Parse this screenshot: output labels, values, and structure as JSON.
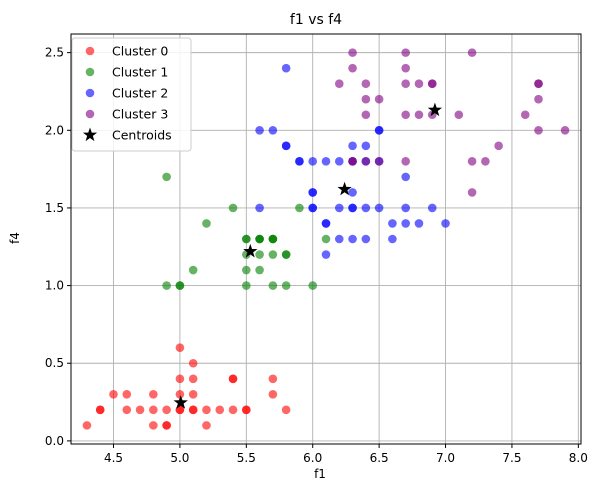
{
  "chart_data": {
    "type": "scatter",
    "title": "f1 vs f4",
    "xlabel": "f1",
    "ylabel": "f4",
    "xlim": [
      4.18,
      8.02
    ],
    "ylim": [
      -0.02,
      2.62
    ],
    "xticks": [
      "4.5",
      "5.0",
      "5.5",
      "6.0",
      "6.5",
      "7.0",
      "7.5",
      "8.0"
    ],
    "yticks": [
      "0.0",
      "0.5",
      "1.0",
      "1.5",
      "2.0",
      "2.5"
    ],
    "grid": true,
    "legend_position": "top-left",
    "series": [
      {
        "name": "Cluster 0",
        "color": "#ff0000",
        "points": [
          [
            4.3,
            0.1
          ],
          [
            4.4,
            0.2
          ],
          [
            4.4,
            0.2
          ],
          [
            4.5,
            0.3
          ],
          [
            4.6,
            0.2
          ],
          [
            4.6,
            0.3
          ],
          [
            4.7,
            0.2
          ],
          [
            4.8,
            0.1
          ],
          [
            4.8,
            0.2
          ],
          [
            4.8,
            0.3
          ],
          [
            4.9,
            0.1
          ],
          [
            4.9,
            0.2
          ],
          [
            5.0,
            0.2
          ],
          [
            5.0,
            0.3
          ],
          [
            5.0,
            0.4
          ],
          [
            5.0,
            0.6
          ],
          [
            5.1,
            0.2
          ],
          [
            5.1,
            0.3
          ],
          [
            5.1,
            0.4
          ],
          [
            5.1,
            0.5
          ],
          [
            5.2,
            0.1
          ],
          [
            5.2,
            0.2
          ],
          [
            5.3,
            0.2
          ],
          [
            5.4,
            0.2
          ],
          [
            5.4,
            0.4
          ],
          [
            5.5,
            0.2
          ],
          [
            5.7,
            0.3
          ],
          [
            5.7,
            0.4
          ],
          [
            5.8,
            0.2
          ],
          [
            5.1,
            0.2
          ],
          [
            4.9,
            0.1
          ],
          [
            5.0,
            0.2
          ],
          [
            5.4,
            0.4
          ],
          [
            5.5,
            0.2
          ]
        ]
      },
      {
        "name": "Cluster 1",
        "color": "#008000",
        "points": [
          [
            4.9,
            1.0
          ],
          [
            4.9,
            1.7
          ],
          [
            5.0,
            1.0
          ],
          [
            5.0,
            1.0
          ],
          [
            5.1,
            1.1
          ],
          [
            5.2,
            1.4
          ],
          [
            5.4,
            1.5
          ],
          [
            5.5,
            1.0
          ],
          [
            5.5,
            1.1
          ],
          [
            5.5,
            1.2
          ],
          [
            5.5,
            1.3
          ],
          [
            5.5,
            1.3
          ],
          [
            5.6,
            1.1
          ],
          [
            5.6,
            1.2
          ],
          [
            5.6,
            1.3
          ],
          [
            5.6,
            1.3
          ],
          [
            5.7,
            1.0
          ],
          [
            5.7,
            1.2
          ],
          [
            5.7,
            1.3
          ],
          [
            5.7,
            1.3
          ],
          [
            5.8,
            1.0
          ],
          [
            5.8,
            1.2
          ],
          [
            5.8,
            1.2
          ],
          [
            5.9,
            1.5
          ],
          [
            6.0,
            1.0
          ],
          [
            6.1,
            1.3
          ],
          [
            5.6,
            1.3
          ],
          [
            5.7,
            1.3
          ]
        ]
      },
      {
        "name": "Cluster 2",
        "color": "#0000ff",
        "points": [
          [
            5.6,
            1.5
          ],
          [
            5.6,
            2.0
          ],
          [
            5.7,
            2.0
          ],
          [
            5.8,
            1.9
          ],
          [
            5.8,
            1.9
          ],
          [
            5.8,
            2.4
          ],
          [
            5.9,
            1.8
          ],
          [
            5.9,
            1.8
          ],
          [
            6.0,
            1.5
          ],
          [
            6.0,
            1.5
          ],
          [
            6.0,
            1.6
          ],
          [
            6.0,
            1.6
          ],
          [
            6.0,
            1.8
          ],
          [
            6.1,
            1.2
          ],
          [
            6.1,
            1.4
          ],
          [
            6.1,
            1.4
          ],
          [
            6.1,
            1.8
          ],
          [
            6.2,
            1.3
          ],
          [
            6.2,
            1.5
          ],
          [
            6.2,
            1.8
          ],
          [
            6.3,
            1.3
          ],
          [
            6.3,
            1.5
          ],
          [
            6.3,
            1.5
          ],
          [
            6.3,
            1.6
          ],
          [
            6.3,
            1.8
          ],
          [
            6.3,
            1.9
          ],
          [
            6.4,
            1.3
          ],
          [
            6.4,
            1.5
          ],
          [
            6.4,
            1.8
          ],
          [
            6.4,
            1.9
          ],
          [
            6.5,
            1.5
          ],
          [
            6.5,
            1.8
          ],
          [
            6.5,
            2.0
          ],
          [
            6.5,
            2.0
          ],
          [
            6.6,
            1.3
          ],
          [
            6.6,
            1.4
          ],
          [
            6.7,
            1.4
          ],
          [
            6.7,
            1.5
          ],
          [
            6.7,
            1.7
          ],
          [
            6.8,
            1.4
          ],
          [
            6.9,
            1.5
          ],
          [
            7.0,
            1.4
          ]
        ]
      },
      {
        "name": "Cluster 3",
        "color": "#800080",
        "points": [
          [
            6.2,
            2.3
          ],
          [
            6.3,
            1.8
          ],
          [
            6.3,
            2.4
          ],
          [
            6.3,
            2.5
          ],
          [
            6.4,
            2.1
          ],
          [
            6.4,
            2.2
          ],
          [
            6.4,
            2.3
          ],
          [
            6.5,
            1.8
          ],
          [
            6.5,
            2.2
          ],
          [
            6.7,
            1.8
          ],
          [
            6.7,
            2.1
          ],
          [
            6.7,
            2.3
          ],
          [
            6.7,
            2.4
          ],
          [
            6.7,
            2.5
          ],
          [
            6.8,
            2.1
          ],
          [
            6.8,
            2.3
          ],
          [
            6.9,
            2.1
          ],
          [
            6.9,
            2.3
          ],
          [
            6.9,
            2.3
          ],
          [
            7.1,
            2.1
          ],
          [
            7.2,
            1.6
          ],
          [
            7.2,
            1.8
          ],
          [
            7.2,
            2.5
          ],
          [
            7.3,
            1.8
          ],
          [
            7.4,
            1.9
          ],
          [
            7.6,
            2.1
          ],
          [
            7.7,
            2.0
          ],
          [
            7.7,
            2.2
          ],
          [
            7.7,
            2.3
          ],
          [
            7.7,
            2.3
          ],
          [
            7.9,
            2.0
          ],
          [
            6.3,
            1.8
          ],
          [
            6.4,
            1.8
          ]
        ]
      }
    ],
    "centroids": {
      "name": "Centroids",
      "color": "#000000",
      "points": [
        [
          5.006,
          0.246
        ],
        [
          5.53,
          1.22
        ],
        [
          6.24,
          1.62
        ],
        [
          6.92,
          2.13
        ]
      ]
    }
  }
}
